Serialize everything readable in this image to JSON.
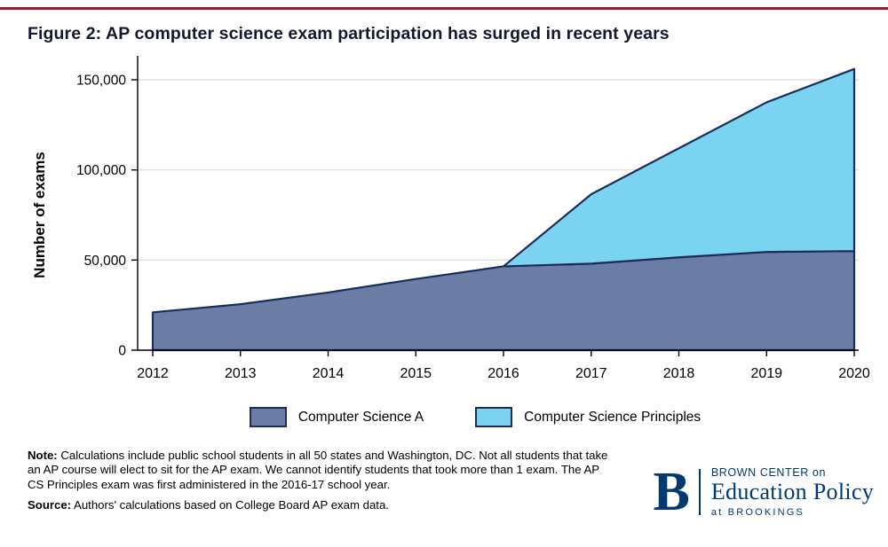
{
  "accent": {
    "top_rule_color": "#8b2331",
    "brand_navy": "#003a70"
  },
  "figure": {
    "title": "Figure 2: AP computer science exam participation has surged in recent years"
  },
  "chart_data": {
    "type": "area",
    "stacked": true,
    "title": "",
    "xlabel": "",
    "ylabel": "Number of exams",
    "x": [
      2012,
      2013,
      2014,
      2015,
      2016,
      2017,
      2018,
      2019,
      2020
    ],
    "series": [
      {
        "name": "Computer Science A",
        "color": "#6b7da5",
        "values": [
          21000,
          25500,
          32000,
          39500,
          46500,
          48000,
          51500,
          54500,
          55000
        ]
      },
      {
        "name": "Computer Science Principles",
        "color": "#79d3f1",
        "values": [
          null,
          null,
          null,
          null,
          0,
          38500,
          60500,
          83000,
          101000
        ]
      }
    ],
    "ylim": [
      0,
      160000
    ],
    "yticks": [
      {
        "value": 0,
        "label": "0"
      },
      {
        "value": 50000,
        "label": "50,000"
      },
      {
        "value": 100000,
        "label": "100,000"
      },
      {
        "value": 150000,
        "label": "150,000"
      }
    ],
    "outline_color": "#1b2d5b",
    "grid_color": "#d9d9d9",
    "axis_color": "#000000",
    "legend_position": "bottom",
    "grid": true
  },
  "notes": {
    "note_label": "Note:",
    "note_text": " Calculations include public school students in all 50 states and Washington, DC. Not all students that take an AP course will elect to sit for the AP exam. We cannot identify students that took more than 1 exam. The AP CS Principles exam was first administered in the 2016-17 school year.",
    "source_label": "Source:",
    "source_text": " Authors' calculations based on College Board AP exam data."
  },
  "logo": {
    "b": "B",
    "line1": "BROWN CENTER on",
    "line2": "Education Policy",
    "line3": "at BROOKINGS"
  }
}
